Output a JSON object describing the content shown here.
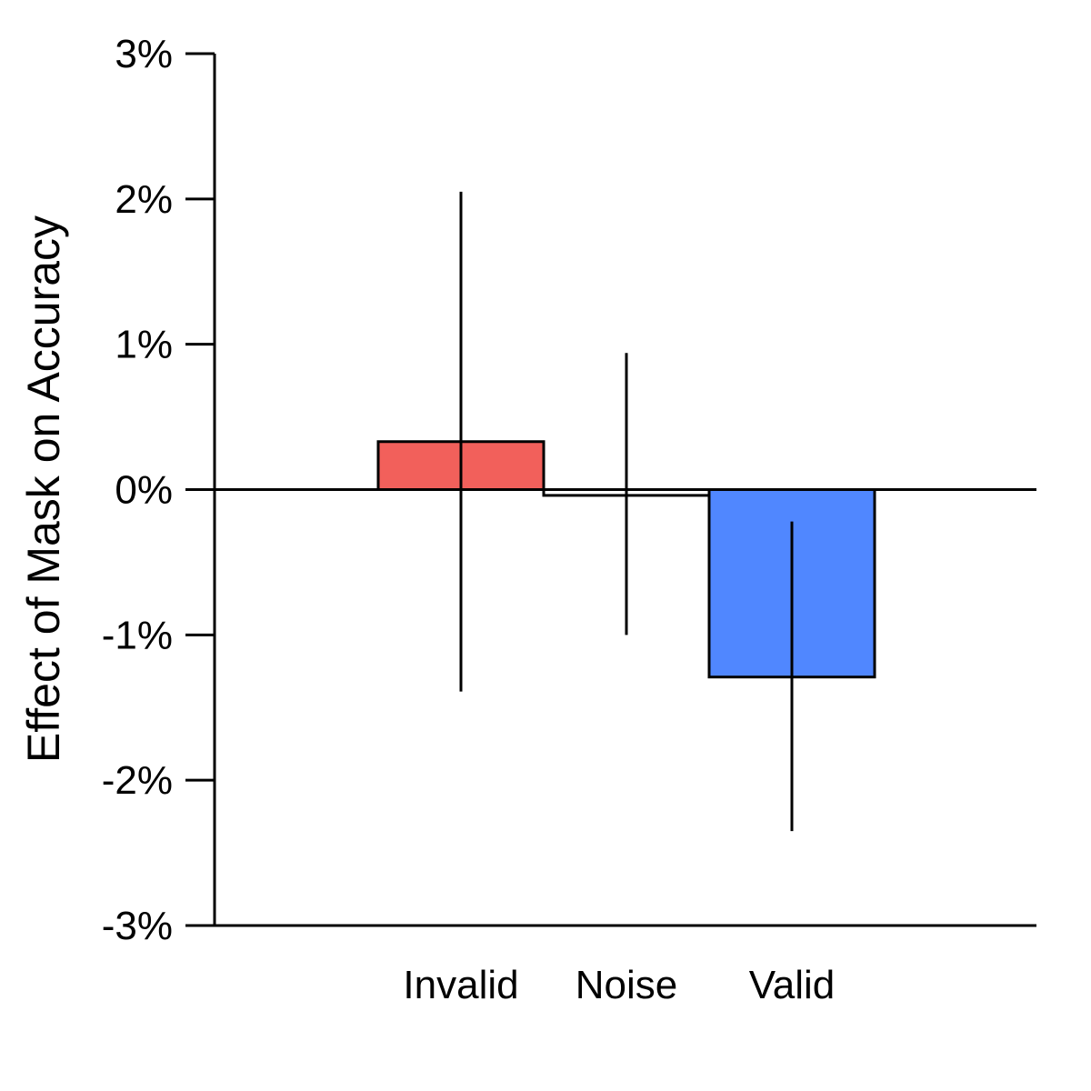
{
  "chart_data": {
    "type": "bar",
    "title": "",
    "xlabel": "",
    "ylabel": "Effect of Mask on Accuracy",
    "ylim": [
      -3,
      3
    ],
    "yticks": [
      {
        "value": 3,
        "label": "3%"
      },
      {
        "value": 2,
        "label": "2%"
      },
      {
        "value": 1,
        "label": "1%"
      },
      {
        "value": 0,
        "label": "0%"
      },
      {
        "value": -1,
        "label": "-1%"
      },
      {
        "value": -2,
        "label": "-2%"
      },
      {
        "value": -3,
        "label": "-3%"
      }
    ],
    "categories": [
      "Invalid",
      "Noise",
      "Valid"
    ],
    "values": [
      0.33,
      -0.04,
      -1.29
    ],
    "error_low": [
      -1.39,
      -1.0,
      -2.35
    ],
    "error_high": [
      2.05,
      0.94,
      -0.22
    ],
    "colors": [
      "#f2605b",
      "#ffffff",
      "#5087ff"
    ],
    "unit": "%",
    "grid": false,
    "legend": "none"
  }
}
